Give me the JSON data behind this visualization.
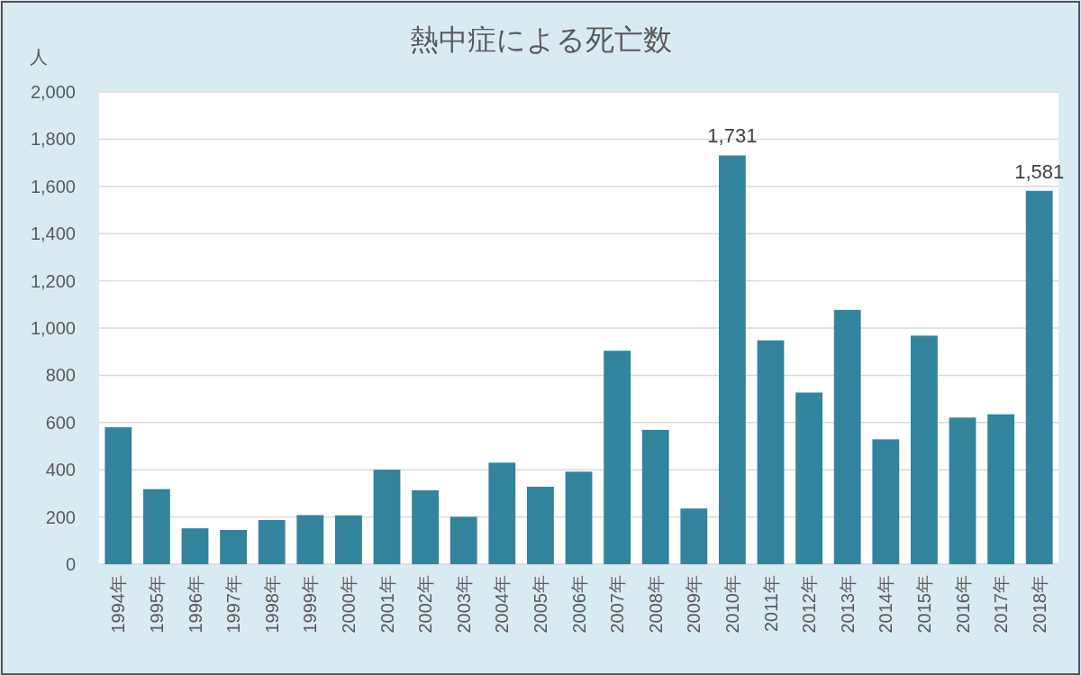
{
  "chart_data": {
    "type": "bar",
    "title": "熱中症による死亡数",
    "ylabel": "人",
    "categories": [
      "1994年",
      "1995年",
      "1996年",
      "1997年",
      "1998年",
      "1999年",
      "2000年",
      "2001年",
      "2002年",
      "2003年",
      "2004年",
      "2005年",
      "2006年",
      "2007年",
      "2008年",
      "2009年",
      "2010年",
      "2011年",
      "2012年",
      "2013年",
      "2014年",
      "2015年",
      "2016年",
      "2017年",
      "2018年"
    ],
    "values": [
      580,
      318,
      152,
      145,
      187,
      208,
      207,
      400,
      313,
      201,
      430,
      328,
      392,
      904,
      569,
      236,
      1731,
      948,
      727,
      1077,
      529,
      968,
      621,
      635,
      1581
    ],
    "value_labels": [
      null,
      null,
      null,
      null,
      null,
      null,
      null,
      null,
      null,
      null,
      null,
      null,
      null,
      null,
      null,
      null,
      "1,731",
      null,
      null,
      null,
      null,
      null,
      null,
      null,
      "1,581"
    ],
    "color": "#31849b",
    "ylim": [
      0,
      2000
    ],
    "yticks": [
      0,
      200,
      400,
      600,
      800,
      {
        "value": 1000,
        "label": "1,000"
      },
      {
        "value": 1200,
        "label": "1,200"
      },
      {
        "value": 1400,
        "label": "1,400"
      },
      {
        "value": 1600,
        "label": "1,600"
      },
      {
        "value": 1800,
        "label": "1,800"
      },
      {
        "value": 2000,
        "label": "2,000"
      }
    ],
    "grid": "y"
  }
}
